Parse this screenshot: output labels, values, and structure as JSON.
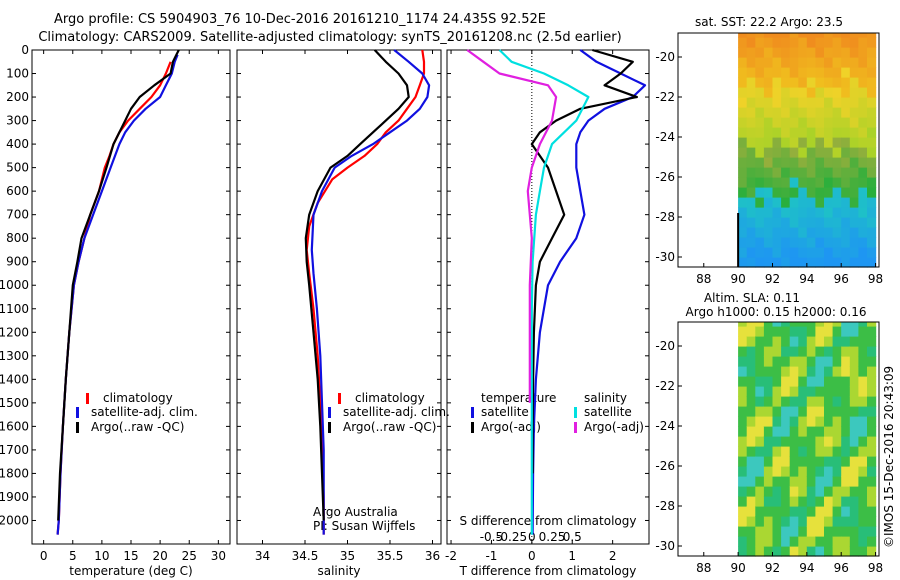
{
  "header": {
    "line1": "Argo profile: CS 5904903_76 10-Dec-2016 20161210_1174 24.435S 92.52E",
    "line2": "Climatology: CARS2009. Satellite-adjusted climatology: synTS_20161208.nc (2.5d earlier)"
  },
  "colors": {
    "climatology": "#ff0000",
    "satellite": "#1010e0",
    "argo": "#000000",
    "sal_sat": "#00e0e0",
    "sal_argo": "#e020e0"
  },
  "depth_ticks": [
    "0",
    "100",
    "200",
    "300",
    "400",
    "500",
    "600",
    "700",
    "800",
    "900",
    "1000",
    "1100",
    "1200",
    "1300",
    "1400",
    "1500",
    "1600",
    "1700",
    "1800",
    "1900",
    "2000"
  ],
  "credit": "©IMOS 15-Dec-2016 20:43:09",
  "chart_data": [
    {
      "type": "line",
      "xlabel": "temperature (deg C)",
      "xticks": [
        "0",
        "5",
        "10",
        "15",
        "20",
        "25",
        "30"
      ],
      "xlim": [
        -2,
        32
      ],
      "ylim": [
        2100,
        0
      ],
      "legend": [
        "climatology",
        "satellite-adj. clim.",
        "Argo(..raw -QC)"
      ],
      "series": [
        {
          "name": "climatology",
          "x": [
            21.8,
            21,
            20,
            18.5,
            16.5,
            14.5,
            13,
            12,
            11.3,
            10.5,
            9.5,
            8,
            7,
            6,
            5.2,
            4.4,
            3.8,
            3.3,
            2.9,
            2.6,
            2.4
          ],
          "y": [
            50,
            100,
            150,
            200,
            250,
            300,
            350,
            400,
            450,
            500,
            600,
            700,
            800,
            900,
            1000,
            1200,
            1400,
            1600,
            1800,
            2000,
            2060
          ]
        },
        {
          "name": "satellite-adj. clim.",
          "x": [
            23,
            22.5,
            22,
            21,
            20,
            17.5,
            15.5,
            14,
            13,
            11.5,
            10,
            8.5,
            7,
            6,
            5.2,
            4.4,
            3.8,
            3.3,
            2.9,
            2.6,
            2.4
          ],
          "y": [
            20,
            50,
            100,
            150,
            200,
            250,
            300,
            350,
            400,
            500,
            600,
            700,
            800,
            900,
            1000,
            1200,
            1400,
            1600,
            1800,
            2000,
            2060
          ]
        },
        {
          "name": "Argo(..raw -QC)",
          "x": [
            23.2,
            22.8,
            22.2,
            21.8,
            19,
            16.5,
            15,
            14,
            13,
            12,
            10.8,
            9.5,
            8,
            6.5,
            5.8,
            5,
            4.4,
            3.8,
            3.3,
            2.8,
            2.5
          ],
          "y": [
            0,
            20,
            50,
            100,
            150,
            200,
            250,
            300,
            350,
            400,
            500,
            600,
            700,
            800,
            900,
            1000,
            1200,
            1400,
            1600,
            1800,
            2000
          ]
        }
      ]
    },
    {
      "type": "line",
      "xlabel": "salinity",
      "xticks": [
        "34",
        "34.5",
        "35",
        "35.5",
        "36"
      ],
      "xlim": [
        33.7,
        36.1
      ],
      "ylim": [
        2100,
        0
      ],
      "legend": [
        "climatology",
        "satellite-adj. clim.",
        "Argo(..raw -QC)"
      ],
      "annotation": [
        "Argo Australia",
        "PI: Susan Wijffels"
      ],
      "series": [
        {
          "name": "climatology",
          "x": [
            35.88,
            35.9,
            35.9,
            35.85,
            35.8,
            35.7,
            35.6,
            35.45,
            35.35,
            35.2,
            35,
            34.82,
            34.65,
            34.55,
            34.52,
            34.55,
            34.6,
            34.65,
            34.68,
            34.7,
            34.72,
            34.72
          ],
          "y": [
            0,
            50,
            100,
            150,
            200,
            250,
            300,
            350,
            400,
            450,
            500,
            550,
            650,
            750,
            850,
            950,
            1100,
            1300,
            1500,
            1700,
            1900,
            2060
          ]
        },
        {
          "name": "satellite-adj. clim.",
          "x": [
            35.55,
            35.72,
            35.88,
            35.96,
            35.94,
            35.85,
            35.7,
            35.5,
            35.3,
            35.05,
            34.85,
            34.7,
            34.6,
            34.58,
            34.6,
            34.64,
            34.68,
            34.7,
            34.72,
            34.72
          ],
          "y": [
            0,
            50,
            100,
            150,
            200,
            250,
            300,
            350,
            400,
            450,
            500,
            600,
            700,
            850,
            950,
            1100,
            1300,
            1500,
            1700,
            2060
          ]
        },
        {
          "name": "Argo(..raw -QC)",
          "x": [
            35.32,
            35.45,
            35.6,
            35.7,
            35.72,
            35.6,
            35.45,
            35.3,
            35.15,
            35,
            34.8,
            34.65,
            34.55,
            34.51,
            34.52,
            34.55,
            34.6,
            34.65,
            34.68,
            34.7,
            34.72
          ],
          "y": [
            0,
            50,
            100,
            150,
            200,
            250,
            300,
            350,
            400,
            450,
            500,
            600,
            700,
            800,
            900,
            1000,
            1200,
            1400,
            1600,
            1800,
            2000
          ]
        }
      ]
    },
    {
      "type": "line",
      "xlabel": "T difference from climatology",
      "secondary_xlabel": "S difference from climatology",
      "xticks": [
        "-2",
        "-1",
        "0",
        "1",
        "2"
      ],
      "secondary_xticks": [
        "-0.5",
        "-0.25",
        "0",
        "0.25",
        "0.5"
      ],
      "xlim": [
        -2.1,
        2.9
      ],
      "ylim": [
        2100,
        0
      ],
      "legend_headers": [
        "temperature",
        "salinity"
      ],
      "legend": [
        "satellite",
        "Argo(-adj)",
        "satellite",
        "Argo(-adj)"
      ],
      "series": [
        {
          "name": "temperature satellite",
          "x": [
            1.2,
            1.6,
            2.2,
            2.8,
            2.5,
            1.8,
            1.4,
            1.2,
            1.1,
            1.1,
            1.2,
            1.3,
            1.1,
            0.7,
            0.4,
            0.2,
            0.1,
            0.05,
            0.03,
            0.02
          ],
          "y": [
            0,
            50,
            100,
            150,
            200,
            250,
            300,
            350,
            400,
            500,
            600,
            700,
            800,
            900,
            1000,
            1200,
            1400,
            1600,
            1800,
            2060
          ]
        },
        {
          "name": "temperature Argo(-adj)",
          "x": [
            1.5,
            2.5,
            2.2,
            1.8,
            2.6,
            1.2,
            0.6,
            0.2,
            0,
            0.4,
            0.6,
            0.8,
            0.5,
            0.2,
            0.1,
            0.05,
            0.03,
            0.02,
            0.02
          ],
          "y": [
            0,
            50,
            100,
            150,
            200,
            250,
            300,
            350,
            400,
            500,
            600,
            700,
            800,
            900,
            1000,
            1200,
            1400,
            1600,
            1800
          ]
        },
        {
          "name": "salinity satellite",
          "x": [
            -0.8,
            -0.5,
            0.3,
            0.9,
            1.4,
            1.1,
            0.5,
            0.3,
            0.2,
            0.1,
            0.02,
            0,
            0,
            0
          ],
          "y": [
            0,
            50,
            100,
            150,
            200,
            300,
            400,
            500,
            600,
            700,
            900,
            1100,
            1500,
            2060
          ]
        },
        {
          "name": "salinity Argo(-adj)",
          "x": [
            -1.6,
            -1.2,
            -0.8,
            0.4,
            0.6,
            0.5,
            0.2,
            0,
            -0.1,
            0,
            -0.05,
            -0.05
          ],
          "y": [
            0,
            50,
            100,
            150,
            200,
            300,
            400,
            500,
            600,
            800,
            1000,
            1500
          ]
        }
      ]
    },
    {
      "type": "heatmap",
      "title": "sat. SST: 22.2 Argo: 23.5",
      "xticks": [
        "88",
        "90",
        "92",
        "94",
        "96",
        "98"
      ],
      "yticks": [
        "-20",
        "-22",
        "-24",
        "-26",
        "-28",
        "-30"
      ],
      "xlim": [
        86.5,
        98.2
      ],
      "ylim": [
        -30.5,
        -18.8
      ],
      "data_xlim": [
        90,
        98
      ],
      "data_ylim": [
        -30.5,
        -18.8
      ]
    },
    {
      "type": "heatmap",
      "title": "Altim. SLA: 0.11",
      "subtitle": "Argo h1000: 0.15 h2000: 0.16",
      "xticks": [
        "88",
        "90",
        "92",
        "94",
        "96",
        "98"
      ],
      "yticks": [
        "-20",
        "-22",
        "-24",
        "-26",
        "-28",
        "-30"
      ],
      "xlim": [
        86.5,
        98.2
      ],
      "ylim": [
        -30.5,
        -18.8
      ],
      "data_xlim": [
        90,
        98
      ],
      "data_ylim": [
        -30.5,
        -18.8
      ]
    }
  ]
}
